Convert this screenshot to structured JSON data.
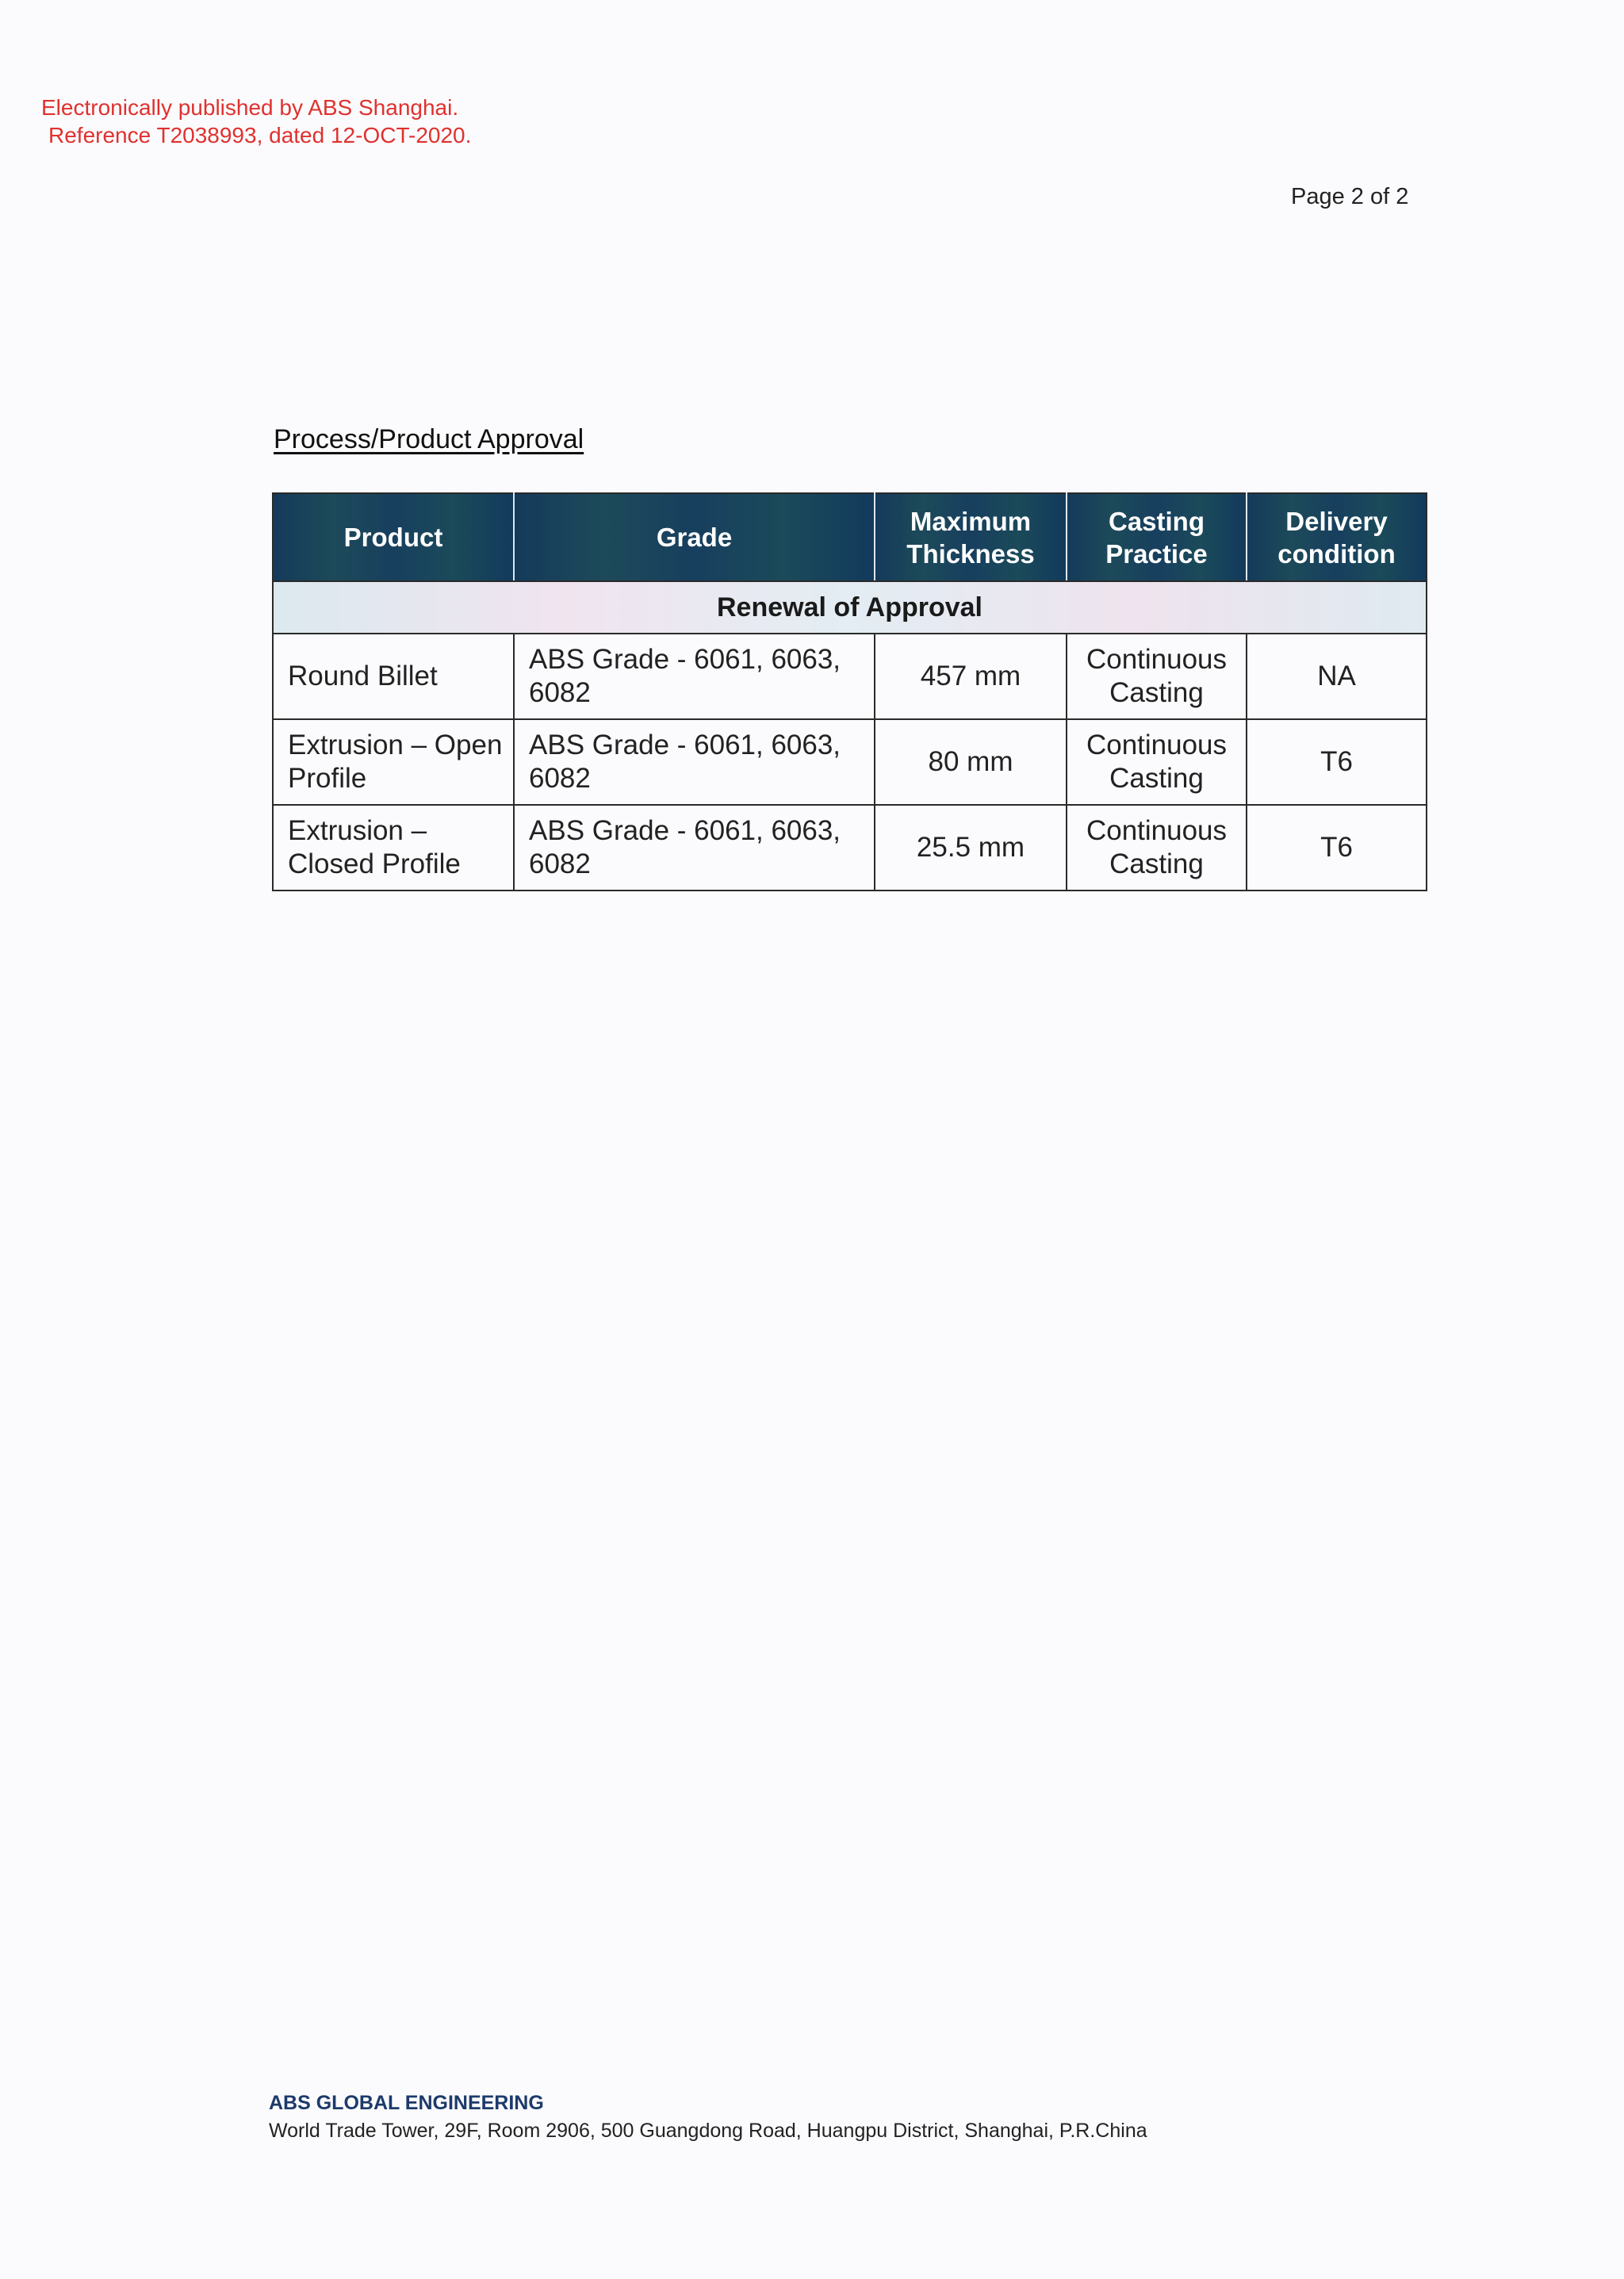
{
  "stamp": {
    "line1": "Electronically published by ABS Shanghai.",
    "line2": "Reference T2038993, dated 12-OCT-2020.",
    "color": "#e0312f"
  },
  "page_number": "Page 2 of 2",
  "section_title": "Process/Product Approval",
  "table": {
    "headers": [
      "Product",
      "Grade",
      "Maximum Thickness",
      "Casting Practice",
      "Delivery condition"
    ],
    "group_label": "Renewal of Approval",
    "rows": [
      [
        "Round Billet",
        "ABS Grade - 6061, 6063, 6082",
        "457 mm",
        "Continuous Casting",
        "NA"
      ],
      [
        "Extrusion – Open Profile",
        "ABS Grade - 6061, 6063, 6082",
        "80 mm",
        "Continuous Casting",
        "T6"
      ],
      [
        "Extrusion – Closed Profile",
        "ABS Grade - 6061, 6063, 6082",
        "25.5 mm",
        "Continuous Casting",
        "T6"
      ]
    ],
    "header_color": "#173f5e"
  },
  "footer": {
    "organization": "ABS GLOBAL ENGINEERING",
    "address": "World Trade Tower, 29F, Room 2906, 500 Guangdong Road, Huangpu District, Shanghai, P.R.China"
  }
}
